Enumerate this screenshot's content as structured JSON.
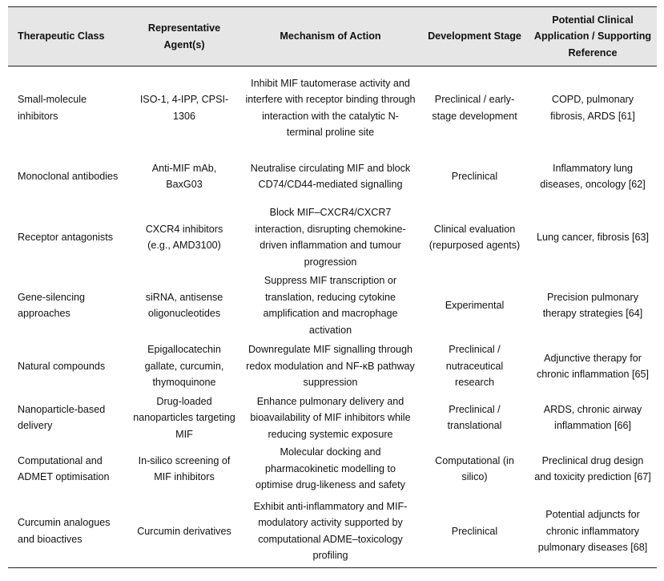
{
  "table": {
    "header": [
      "Therapeutic Class",
      "Representative Agent(s)",
      "Mechanism of Action",
      "Development Stage",
      "Potential Clinical Application / Supporting Reference"
    ],
    "rows": [
      [
        "Small-molecule inhibitors",
        "ISO-1, 4-IPP, CPSI-1306",
        "Inhibit MIF tautomerase activity and interfere with receptor binding through interaction with the catalytic N-terminal proline site",
        "Preclinical / early-stage development",
        "COPD, pulmonary fibrosis, ARDS [61]"
      ],
      [
        "Monoclonal antibodies",
        "Anti-MIF mAb, BaxG03",
        "Neutralise circulating MIF and block CD74/CD44-mediated signalling",
        "Preclinical",
        "Inflammatory lung diseases, oncology [62]"
      ],
      [
        "Receptor antagonists",
        "CXCR4 inhibitors (e.g., AMD3100)",
        "Block MIF–CXCR4/CXCR7 interaction, disrupting chemokine-driven inflammation and tumour progression",
        "Clinical evaluation (repurposed agents)",
        "Lung cancer, fibrosis [63]"
      ],
      [
        "Gene-silencing approaches",
        "siRNA, antisense oligonucleotides",
        "Suppress MIF transcription or translation, reducing cytokine amplification and macrophage activation",
        "Experimental",
        "Precision pulmonary therapy strategies [64]"
      ],
      [
        "Natural compounds",
        "Epigallocatechin gallate, curcumin, thymoquinone",
        "Downregulate MIF signalling through redox modulation and NF-κB pathway suppression",
        "Preclinical / nutraceutical research",
        "Adjunctive therapy for chronic inflammation [65]"
      ],
      [
        "Nanoparticle-based delivery",
        "Drug-loaded nanoparticles targeting MIF",
        "Enhance pulmonary delivery and bioavailability of MIF inhibitors while reducing systemic exposure",
        "Preclinical / translational",
        "ARDS, chronic airway inflammation [66]"
      ],
      [
        "Computational and ADMET optimisation",
        "In-silico screening of MIF inhibitors",
        "Molecular docking and pharmacokinetic modelling to optimise drug-likeness and safety",
        "Computational (in silico)",
        "Preclinical drug design and toxicity prediction [67]"
      ],
      [
        "Curcumin analogues and bioactives",
        "Curcumin derivatives",
        "Exhibit anti-inflammatory and MIF-modulatory activity supported by computational ADME–toxicology profiling",
        "Preclinical",
        "Potential adjuncts for chronic inflammatory pulmonary diseases [68]"
      ]
    ]
  }
}
